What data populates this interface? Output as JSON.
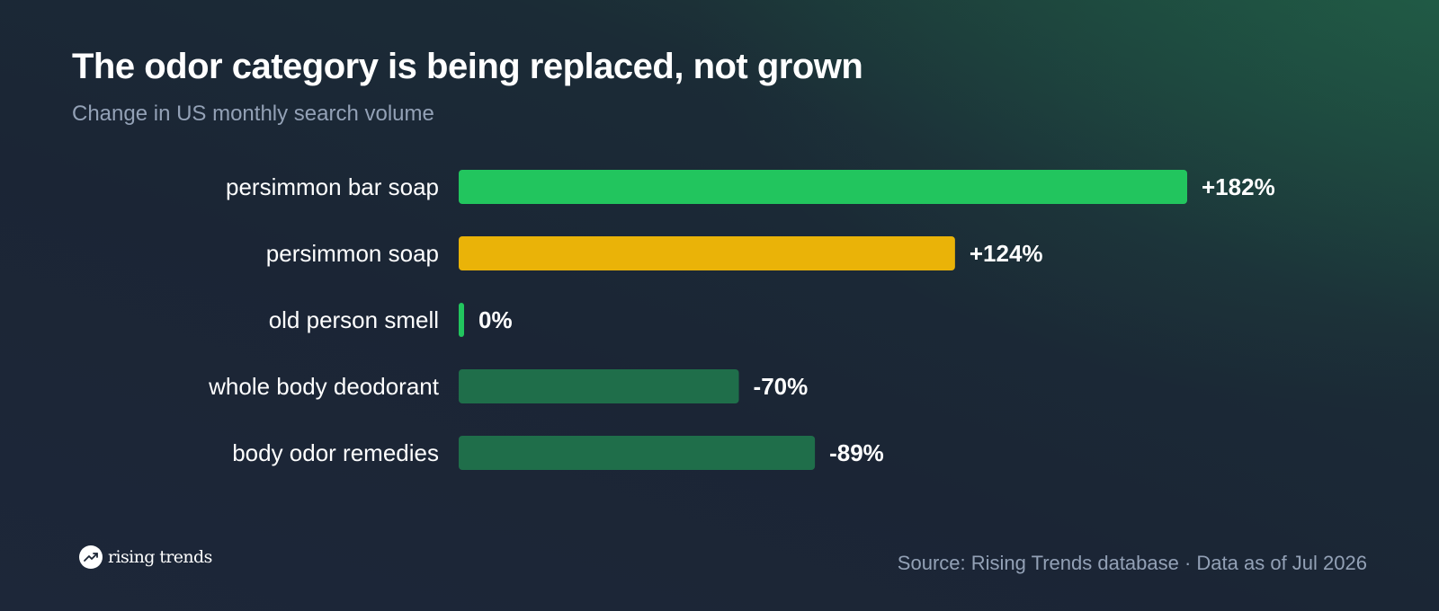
{
  "header": {
    "title": "The odor category is being replaced, not grown",
    "subtitle": "Change in US monthly search volume"
  },
  "footer": {
    "brand": "rising trends",
    "brand_icon": "trending-up-icon",
    "source": "Source: Rising Trends database · Data as of Jul 2026"
  },
  "chart_data": {
    "type": "bar",
    "orientation": "horizontal",
    "title": "The odor category is being replaced, not grown",
    "subtitle": "Change in US monthly search volume",
    "categories": [
      "persimmon bar soap",
      "persimmon soap",
      "old person smell",
      "whole body deodorant",
      "body odor remedies"
    ],
    "values": [
      182,
      124,
      0,
      -70,
      -89
    ],
    "value_labels": [
      "+182%",
      "+124%",
      "0%",
      "-70%",
      "-89%"
    ],
    "colors": [
      "#22c55e",
      "#eab308",
      "#22c55e",
      "#1f6e4a",
      "#1f6e4a"
    ],
    "bar_length_basis": "absolute value",
    "grid": false
  }
}
